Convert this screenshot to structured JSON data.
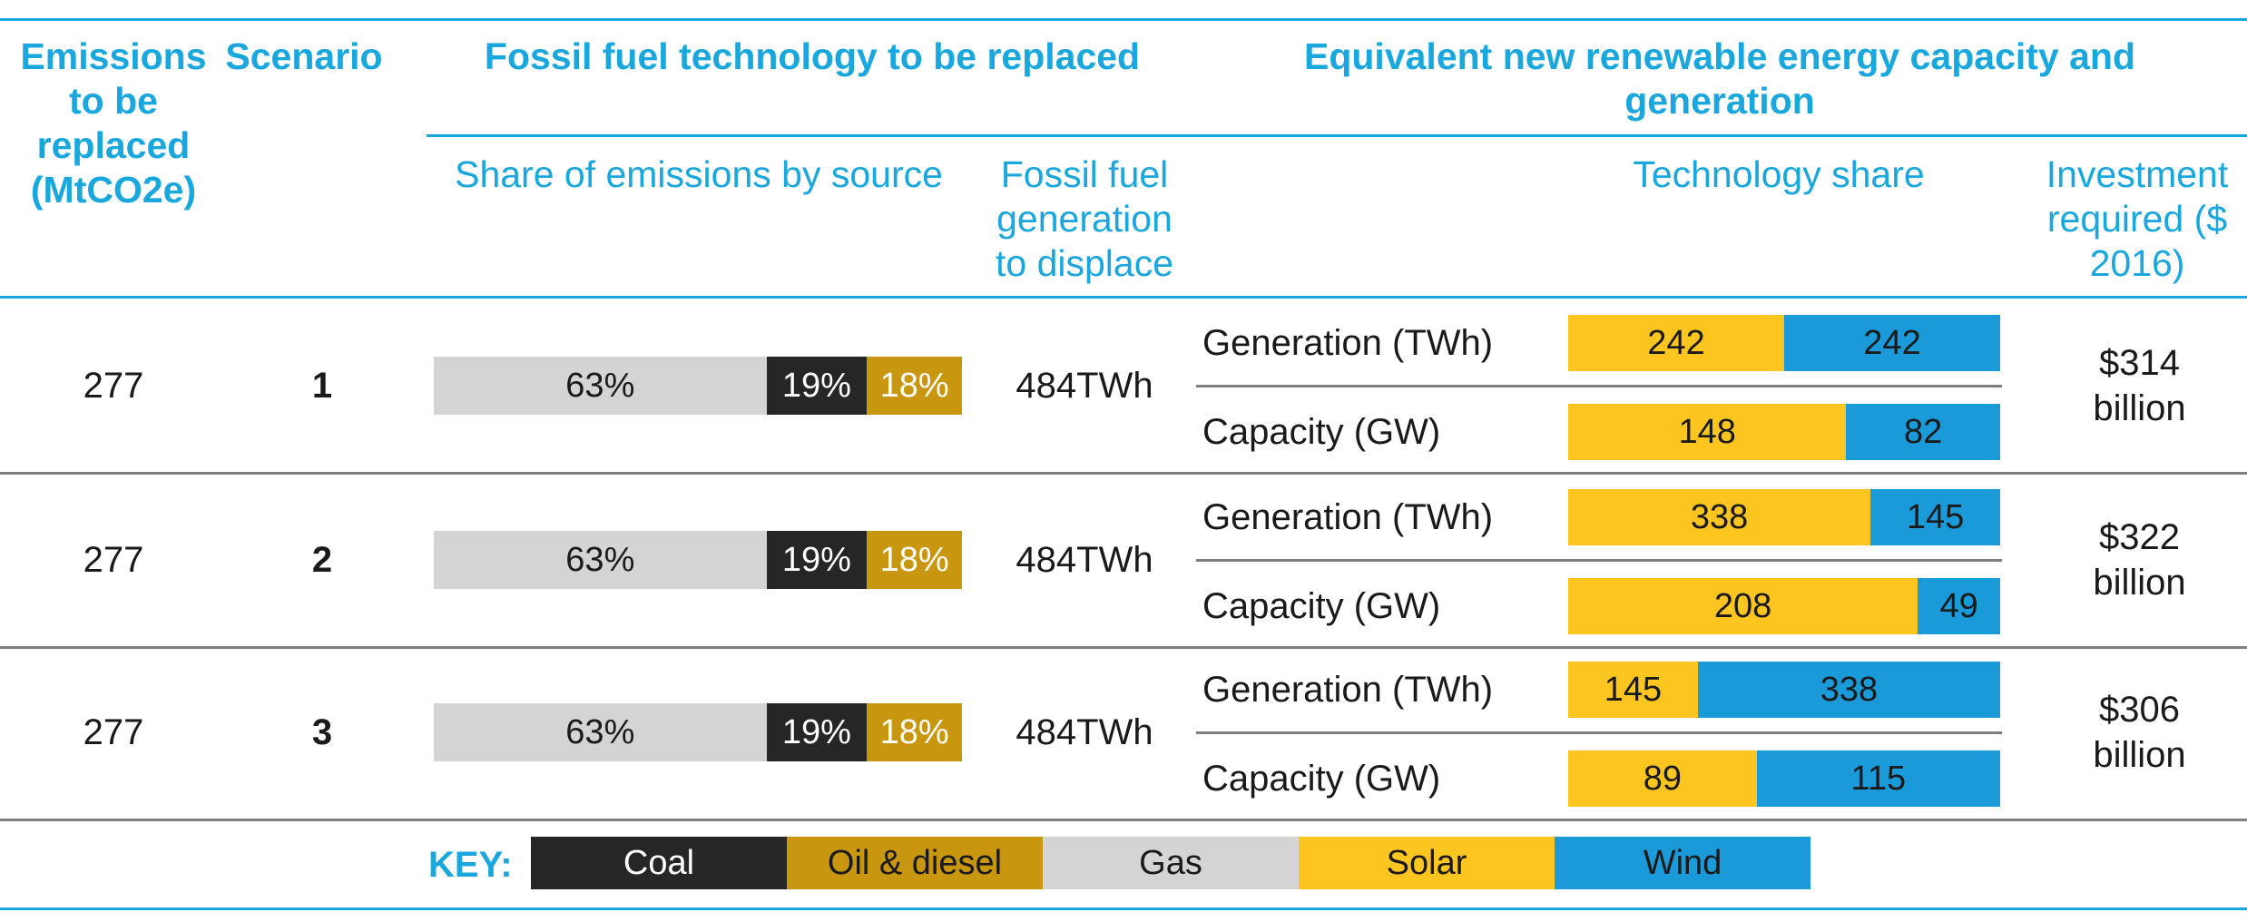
{
  "colors": {
    "accent": "#1aa7de",
    "coal": "#262626",
    "oil": "#c8960f",
    "gas": "#d4d4d4",
    "solar": "#fdc520",
    "wind": "#1a9ad8",
    "rule": "#7f7f7f"
  },
  "header": {
    "emissions": "Emissions to be replaced (MtCO2e)",
    "scenario": "Scenario",
    "fossil_group": "Fossil fuel technology to be replaced",
    "renewable_group": "Equivalent new renewable energy capacity and generation",
    "share_of_emissions": "Share of emissions by source",
    "fossil_generation": "Fossil fuel generation to displace",
    "technology_share": "Technology share",
    "investment": "Investment required ($ 2016)"
  },
  "labels": {
    "generation": "Generation (TWh)",
    "capacity": "Capacity (GW)"
  },
  "key": {
    "title": "KEY:",
    "items": [
      "Coal",
      "Oil & diesel",
      "Gas",
      "Solar",
      "Wind"
    ]
  },
  "chart_data": {
    "type": "table",
    "series_names": [
      "Gas",
      "Coal",
      "Oil & diesel",
      "Solar",
      "Wind"
    ],
    "rows": [
      {
        "emissions": "277",
        "scenario": "1",
        "emission_shares": [
          {
            "source": "Gas",
            "value": 63,
            "label": "63%"
          },
          {
            "source": "Coal",
            "value": 19,
            "label": "19%"
          },
          {
            "source": "Oil & diesel",
            "value": 18,
            "label": "18%"
          }
        ],
        "fossil_generation": "484TWh",
        "generation": {
          "solar": 242,
          "wind": 242
        },
        "capacity": {
          "solar": 148,
          "wind": 82
        },
        "investment_line1": "$314",
        "investment_line2": "billion"
      },
      {
        "emissions": "277",
        "scenario": "2",
        "emission_shares": [
          {
            "source": "Gas",
            "value": 63,
            "label": "63%"
          },
          {
            "source": "Coal",
            "value": 19,
            "label": "19%"
          },
          {
            "source": "Oil & diesel",
            "value": 18,
            "label": "18%"
          }
        ],
        "fossil_generation": "484TWh",
        "generation": {
          "solar": 338,
          "wind": 145
        },
        "capacity": {
          "solar": 208,
          "wind": 49
        },
        "investment_line1": "$322",
        "investment_line2": "billion"
      },
      {
        "emissions": "277",
        "scenario": "3",
        "emission_shares": [
          {
            "source": "Gas",
            "value": 63,
            "label": "63%"
          },
          {
            "source": "Coal",
            "value": 19,
            "label": "19%"
          },
          {
            "source": "Oil & diesel",
            "value": 18,
            "label": "18%"
          }
        ],
        "fossil_generation": "484TWh",
        "generation": {
          "solar": 145,
          "wind": 338
        },
        "capacity": {
          "solar": 89,
          "wind": 115
        },
        "investment_line1": "$306",
        "investment_line2": "billion"
      }
    ]
  }
}
